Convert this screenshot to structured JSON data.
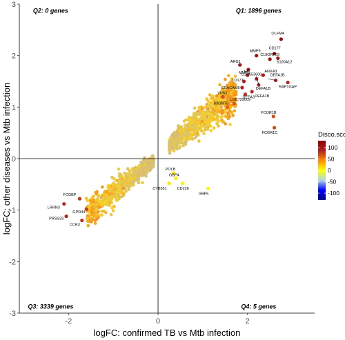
{
  "chart_data": {
    "type": "scatter",
    "title": "",
    "xlabel": "logFC: confirmed TB vs Mtb infection",
    "ylabel": "logFC: other diseases vs Mtb infection",
    "xlim": [
      -3.1,
      3.5
    ],
    "ylim": [
      -3,
      3
    ],
    "xticks": [
      -2,
      0,
      2
    ],
    "yticks": [
      -3,
      -2,
      -1,
      0,
      1,
      2,
      3
    ],
    "grid": false,
    "reference_lines": {
      "x": 0,
      "y": 0
    },
    "quadrant_labels": [
      {
        "id": "q1",
        "text": "Q1: 1896 genes"
      },
      {
        "id": "q2",
        "text": "Q2: 0 genes"
      },
      {
        "id": "q3",
        "text": "Q3: 3339 genes"
      },
      {
        "id": "q4",
        "text": "Q4: 5 genes"
      }
    ],
    "legend": {
      "title": "Disco.score",
      "placement": "right",
      "ticks": [
        100,
        50,
        0,
        -50,
        -100
      ],
      "range": [
        -130,
        130
      ],
      "colors": [
        "#00008b",
        "#0000ff",
        "#add8e6",
        "#ffff00",
        "#ff8c00",
        "#b22222",
        "#8b0000"
      ]
    },
    "labeled_genes": [
      {
        "gene": "OLFM4",
        "x": 2.75,
        "y": 2.32,
        "score": 118
      },
      {
        "gene": "CD177",
        "x": 2.6,
        "y": 2.04,
        "score": 112
      },
      {
        "gene": "MMP9",
        "x": 2.2,
        "y": 2.0,
        "score": 112
      },
      {
        "gene": "C19ORF59",
        "x": 2.5,
        "y": 1.93,
        "score": 108
      },
      {
        "gene": "S100A12",
        "x": 2.68,
        "y": 1.95,
        "score": 105
      },
      {
        "gene": "ARG1",
        "x": 1.83,
        "y": 1.82,
        "score": 104
      },
      {
        "gene": "MMP8",
        "x": 2.02,
        "y": 1.73,
        "score": 100
      },
      {
        "gene": "ANXA3",
        "x": 2.35,
        "y": 1.62,
        "score": 95
      },
      {
        "gene": "HP",
        "x": 2.0,
        "y": 1.62,
        "score": 95
      },
      {
        "gene": "LOC653600",
        "x": 2.2,
        "y": 1.55,
        "score": 92
      },
      {
        "gene": "CD177",
        "x": 1.92,
        "y": 1.5,
        "score": 92
      },
      {
        "gene": "DEFA1B",
        "x": 2.63,
        "y": 1.52,
        "score": 88
      },
      {
        "gene": "CEACAM8",
        "x": 1.88,
        "y": 1.38,
        "score": 90
      },
      {
        "gene": "DEFA1B",
        "x": 2.25,
        "y": 1.43,
        "score": 88
      },
      {
        "gene": "RAP1GAP",
        "x": 2.9,
        "y": 1.48,
        "score": 85
      },
      {
        "gene": "DEFA3",
        "x": 1.95,
        "y": 1.25,
        "score": 80
      },
      {
        "gene": "DEFA1B",
        "x": 2.1,
        "y": 1.3,
        "score": 85
      },
      {
        "gene": "VNN1",
        "x": 1.45,
        "y": 1.2,
        "score": 70
      },
      {
        "gene": "LOC729009",
        "x": 1.7,
        "y": 1.07,
        "score": 65
      },
      {
        "gene": "B3GNT5",
        "x": 1.55,
        "y": 1.0,
        "score": 60
      },
      {
        "gene": "FCGR1B",
        "x": 2.58,
        "y": 0.82,
        "score": 70
      },
      {
        "gene": "FCGR1C",
        "x": 2.6,
        "y": 0.6,
        "score": 70
      },
      {
        "gene": "POLB",
        "x": 0.35,
        "y": -0.28,
        "score": 8
      },
      {
        "gene": "GBP4",
        "x": 0.4,
        "y": -0.38,
        "score": 8
      },
      {
        "gene": "CD226",
        "x": 0.55,
        "y": -0.48,
        "score": 5
      },
      {
        "gene": "CYB561",
        "x": 0.25,
        "y": -0.48,
        "score": 8
      },
      {
        "gene": "GBP5",
        "x": 1.12,
        "y": -0.58,
        "score": 3
      },
      {
        "gene": "FCGBP",
        "x": -1.75,
        "y": -0.78,
        "score": 80
      },
      {
        "gene": "LRRN3",
        "x": -2.1,
        "y": -0.88,
        "score": 85
      },
      {
        "gene": "GPR44",
        "x": -1.6,
        "y": -0.98,
        "score": 75
      },
      {
        "gene": "PRSS33",
        "x": -2.05,
        "y": -1.12,
        "score": 85
      },
      {
        "gene": "CCR3",
        "x": -1.7,
        "y": -1.2,
        "score": 80
      }
    ],
    "cluster_summary": [
      {
        "quadrant": "Q1",
        "x_range": [
          0.35,
          1.8
        ],
        "slope": 0.7,
        "score_range": [
          5,
          65
        ]
      },
      {
        "quadrant": "Q3",
        "x_range": [
          -1.6,
          -0.1
        ],
        "slope": 0.7,
        "score_range": [
          5,
          65
        ]
      }
    ]
  }
}
